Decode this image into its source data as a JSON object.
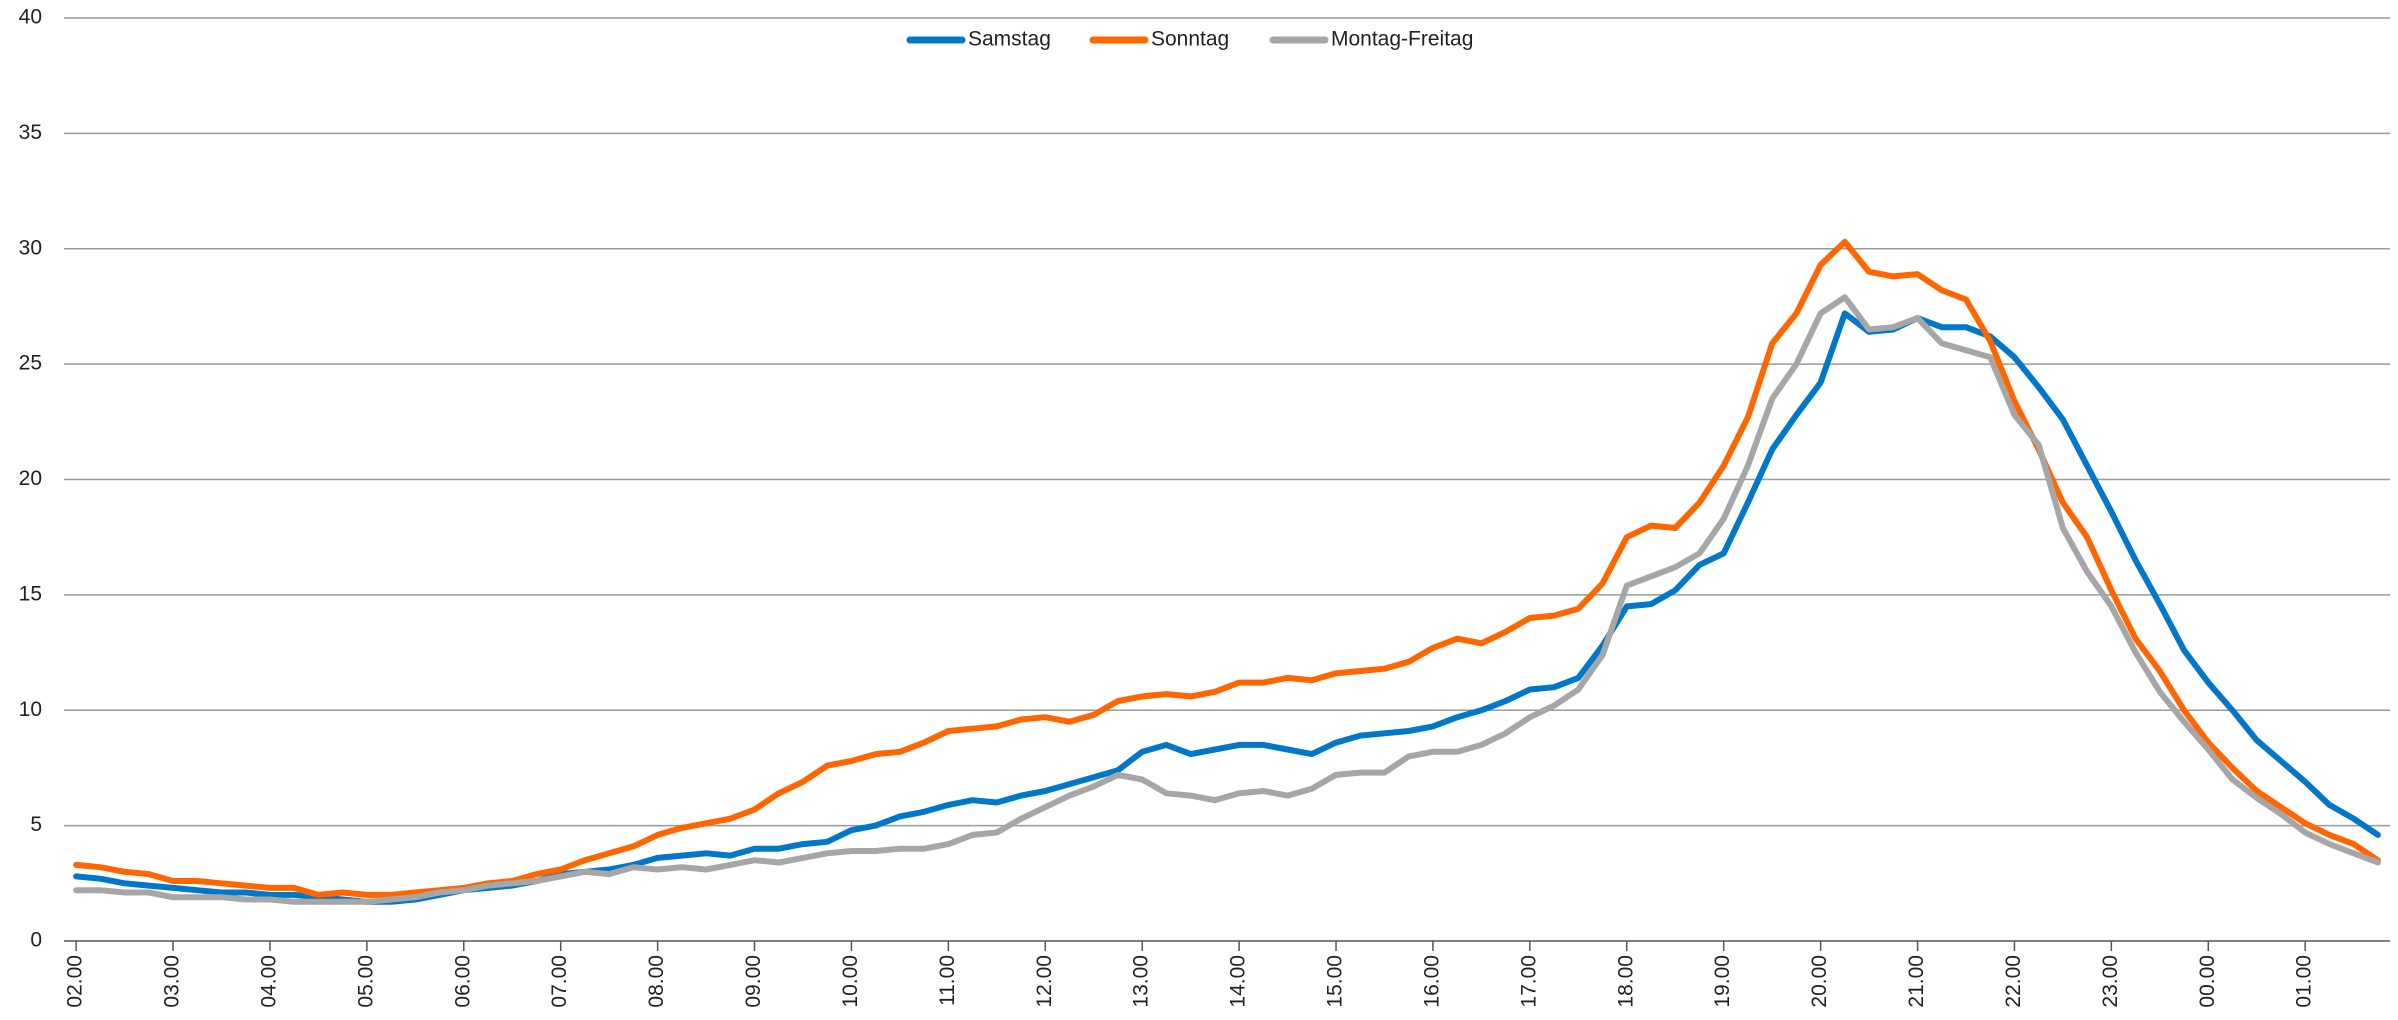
{
  "chart_data": {
    "type": "line",
    "categories": [
      "02.00",
      null,
      null,
      null,
      "03.00",
      null,
      null,
      null,
      "04.00",
      null,
      null,
      null,
      "05.00",
      null,
      null,
      null,
      "06.00",
      null,
      null,
      null,
      "07.00",
      null,
      null,
      null,
      "08.00",
      null,
      null,
      null,
      "09.00",
      null,
      null,
      null,
      "10.00",
      null,
      null,
      null,
      "11.00",
      null,
      null,
      null,
      "12.00",
      null,
      null,
      null,
      "13.00",
      null,
      null,
      null,
      "14.00",
      null,
      null,
      null,
      "15.00",
      null,
      null,
      null,
      "16.00",
      null,
      null,
      null,
      "17.00",
      null,
      null,
      null,
      "18.00",
      null,
      null,
      null,
      "19.00",
      null,
      null,
      null,
      "20.00",
      null,
      null,
      null,
      "21.00",
      null,
      null,
      null,
      "22.00",
      null,
      null,
      null,
      "23.00",
      null,
      null,
      null,
      "00.00",
      null,
      null,
      null,
      "01.00",
      null,
      null,
      null
    ],
    "series": [
      {
        "name": "Samstag",
        "color": "#0077c8",
        "values": [
          2.8,
          2.7,
          2.5,
          2.4,
          2.3,
          2.2,
          2.1,
          2.1,
          2.0,
          2.0,
          1.9,
          1.8,
          1.7,
          1.7,
          1.8,
          2.0,
          2.2,
          2.3,
          2.4,
          2.6,
          2.9,
          3.0,
          3.1,
          3.3,
          3.6,
          3.7,
          3.8,
          3.7,
          4.0,
          4.0,
          4.2,
          4.3,
          4.8,
          5.0,
          5.4,
          5.6,
          5.9,
          6.1,
          6.0,
          6.3,
          6.5,
          6.8,
          7.1,
          7.4,
          8.2,
          8.5,
          8.1,
          8.3,
          8.5,
          8.5,
          8.3,
          8.1,
          8.6,
          8.9,
          9.0,
          9.1,
          9.3,
          9.7,
          10.0,
          10.4,
          10.9,
          11.0,
          11.4,
          12.8,
          14.5,
          14.6,
          15.2,
          16.3,
          16.8,
          19.0,
          21.3,
          22.8,
          24.2,
          27.2,
          26.4,
          26.5,
          27.0,
          26.6,
          26.6,
          26.2,
          25.3,
          24.0,
          22.6,
          20.6,
          18.6,
          16.5,
          14.6,
          12.6,
          11.2,
          10.0,
          8.7,
          7.8,
          6.9,
          5.9,
          5.3,
          4.6
        ]
      },
      {
        "name": "Sonntag",
        "color": "#ff6600",
        "values": [
          3.3,
          3.2,
          3.0,
          2.9,
          2.6,
          2.6,
          2.5,
          2.4,
          2.3,
          2.3,
          2.0,
          2.1,
          2.0,
          2.0,
          2.1,
          2.2,
          2.3,
          2.5,
          2.6,
          2.9,
          3.1,
          3.5,
          3.8,
          4.1,
          4.6,
          4.9,
          5.1,
          5.3,
          5.7,
          6.4,
          6.9,
          7.6,
          7.8,
          8.1,
          8.2,
          8.6,
          9.1,
          9.2,
          9.3,
          9.6,
          9.7,
          9.5,
          9.8,
          10.4,
          10.6,
          10.7,
          10.6,
          10.8,
          11.2,
          11.2,
          11.4,
          11.3,
          11.6,
          11.7,
          11.8,
          12.1,
          12.7,
          13.1,
          12.9,
          13.4,
          14.0,
          14.1,
          14.4,
          15.5,
          17.5,
          18.0,
          17.9,
          19.0,
          20.6,
          22.7,
          25.9,
          27.2,
          29.3,
          30.3,
          29.0,
          28.8,
          28.9,
          28.2,
          27.8,
          26.0,
          23.4,
          21.3,
          19.0,
          17.5,
          15.2,
          13.1,
          11.7,
          10.0,
          8.6,
          7.5,
          6.5,
          5.8,
          5.1,
          4.6,
          4.2,
          3.5
        ]
      },
      {
        "name": "Montag-Freitag",
        "color": "#a6a6a6",
        "values": [
          2.2,
          2.2,
          2.1,
          2.1,
          1.9,
          1.9,
          1.9,
          1.8,
          1.8,
          1.7,
          1.7,
          1.7,
          1.7,
          1.8,
          1.9,
          2.1,
          2.2,
          2.4,
          2.5,
          2.6,
          2.8,
          3.0,
          2.9,
          3.2,
          3.1,
          3.2,
          3.1,
          3.3,
          3.5,
          3.4,
          3.6,
          3.8,
          3.9,
          3.9,
          4.0,
          4.0,
          4.2,
          4.6,
          4.7,
          5.3,
          5.8,
          6.3,
          6.7,
          7.2,
          7.0,
          6.4,
          6.3,
          6.1,
          6.4,
          6.5,
          6.3,
          6.6,
          7.2,
          7.3,
          7.3,
          8.0,
          8.2,
          8.2,
          8.5,
          9.0,
          9.7,
          10.2,
          10.9,
          12.4,
          15.4,
          15.8,
          16.2,
          16.8,
          18.3,
          20.6,
          23.5,
          25.0,
          27.2,
          27.9,
          26.5,
          26.6,
          27.0,
          25.9,
          25.6,
          25.3,
          22.8,
          21.5,
          17.9,
          16.0,
          14.5,
          12.5,
          10.8,
          9.5,
          8.3,
          7.0,
          6.2,
          5.5,
          4.7,
          4.2,
          3.8,
          3.4
        ]
      }
    ],
    "ylim": [
      0,
      40
    ],
    "yticks": [
      0,
      5,
      10,
      15,
      20,
      25,
      30,
      35,
      40
    ],
    "grid": true,
    "legend": "top"
  }
}
